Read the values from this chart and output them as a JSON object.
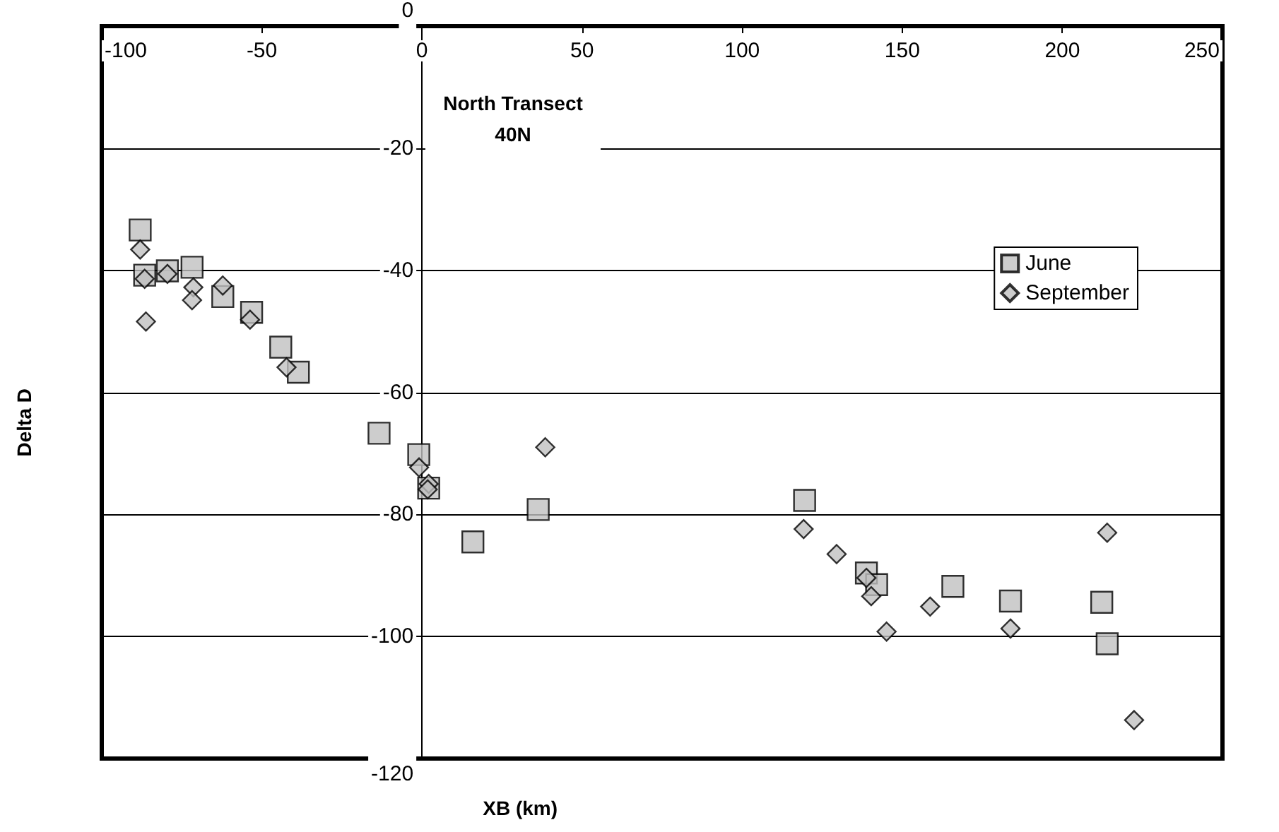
{
  "chart_data": {
    "type": "scatter",
    "title": "North Transect\n40N",
    "xlabel": "XB (km)",
    "ylabel": "Delta D",
    "xlim": [
      -100,
      250
    ],
    "xticks": [
      -100,
      -50,
      0,
      50,
      100,
      150,
      200,
      250
    ],
    "ylim": [
      -120,
      0
    ],
    "yticks": [
      -120,
      -100,
      -80,
      -60,
      -40,
      -20,
      0
    ],
    "grid": "y",
    "legend": "top right",
    "series": [
      {
        "name": "June",
        "color": "#c0c0c0",
        "marker": "square",
        "x": [
          -88,
          -86.6,
          -79.5,
          -71.8,
          -62.2,
          -53.2,
          -44.1,
          -38.6,
          -13.4,
          -1.0,
          2.1,
          36.3,
          15.9,
          119.5,
          138.8,
          142,
          165.8,
          183.8,
          212.3,
          214
        ],
        "values": [
          -33.4,
          -40.8,
          -40.1,
          -39.5,
          -44.3,
          -46.9,
          -52.6,
          -56.7,
          -66.7,
          -70.2,
          -75.7,
          -79.2,
          -84.5,
          -77.7,
          -89.6,
          -91.5,
          -91.8,
          -94.2,
          -94.4,
          -101.2
        ]
      },
      {
        "name": "September",
        "color": "#c0c0c0",
        "marker": "diamond",
        "x": [
          -88,
          -86.6,
          -86.2,
          -79.5,
          -71.4,
          -71.8,
          -62.2,
          -53.7,
          -42.3,
          -0.9,
          2.1,
          1.8,
          38.5,
          119.2,
          129.5,
          138.8,
          140.3,
          145.1,
          158.7,
          183.8,
          214,
          222.4
        ],
        "values": [
          -36.6,
          -41.4,
          -48.4,
          -40.6,
          -42.8,
          -44.9,
          -42.5,
          -48.1,
          -55.9,
          -72.3,
          -75.0,
          -75.9,
          -69.0,
          -82.4,
          -86.5,
          -90.4,
          -93.4,
          -99.2,
          -95.1,
          -98.7,
          -83.0,
          -113.7
        ]
      }
    ]
  }
}
